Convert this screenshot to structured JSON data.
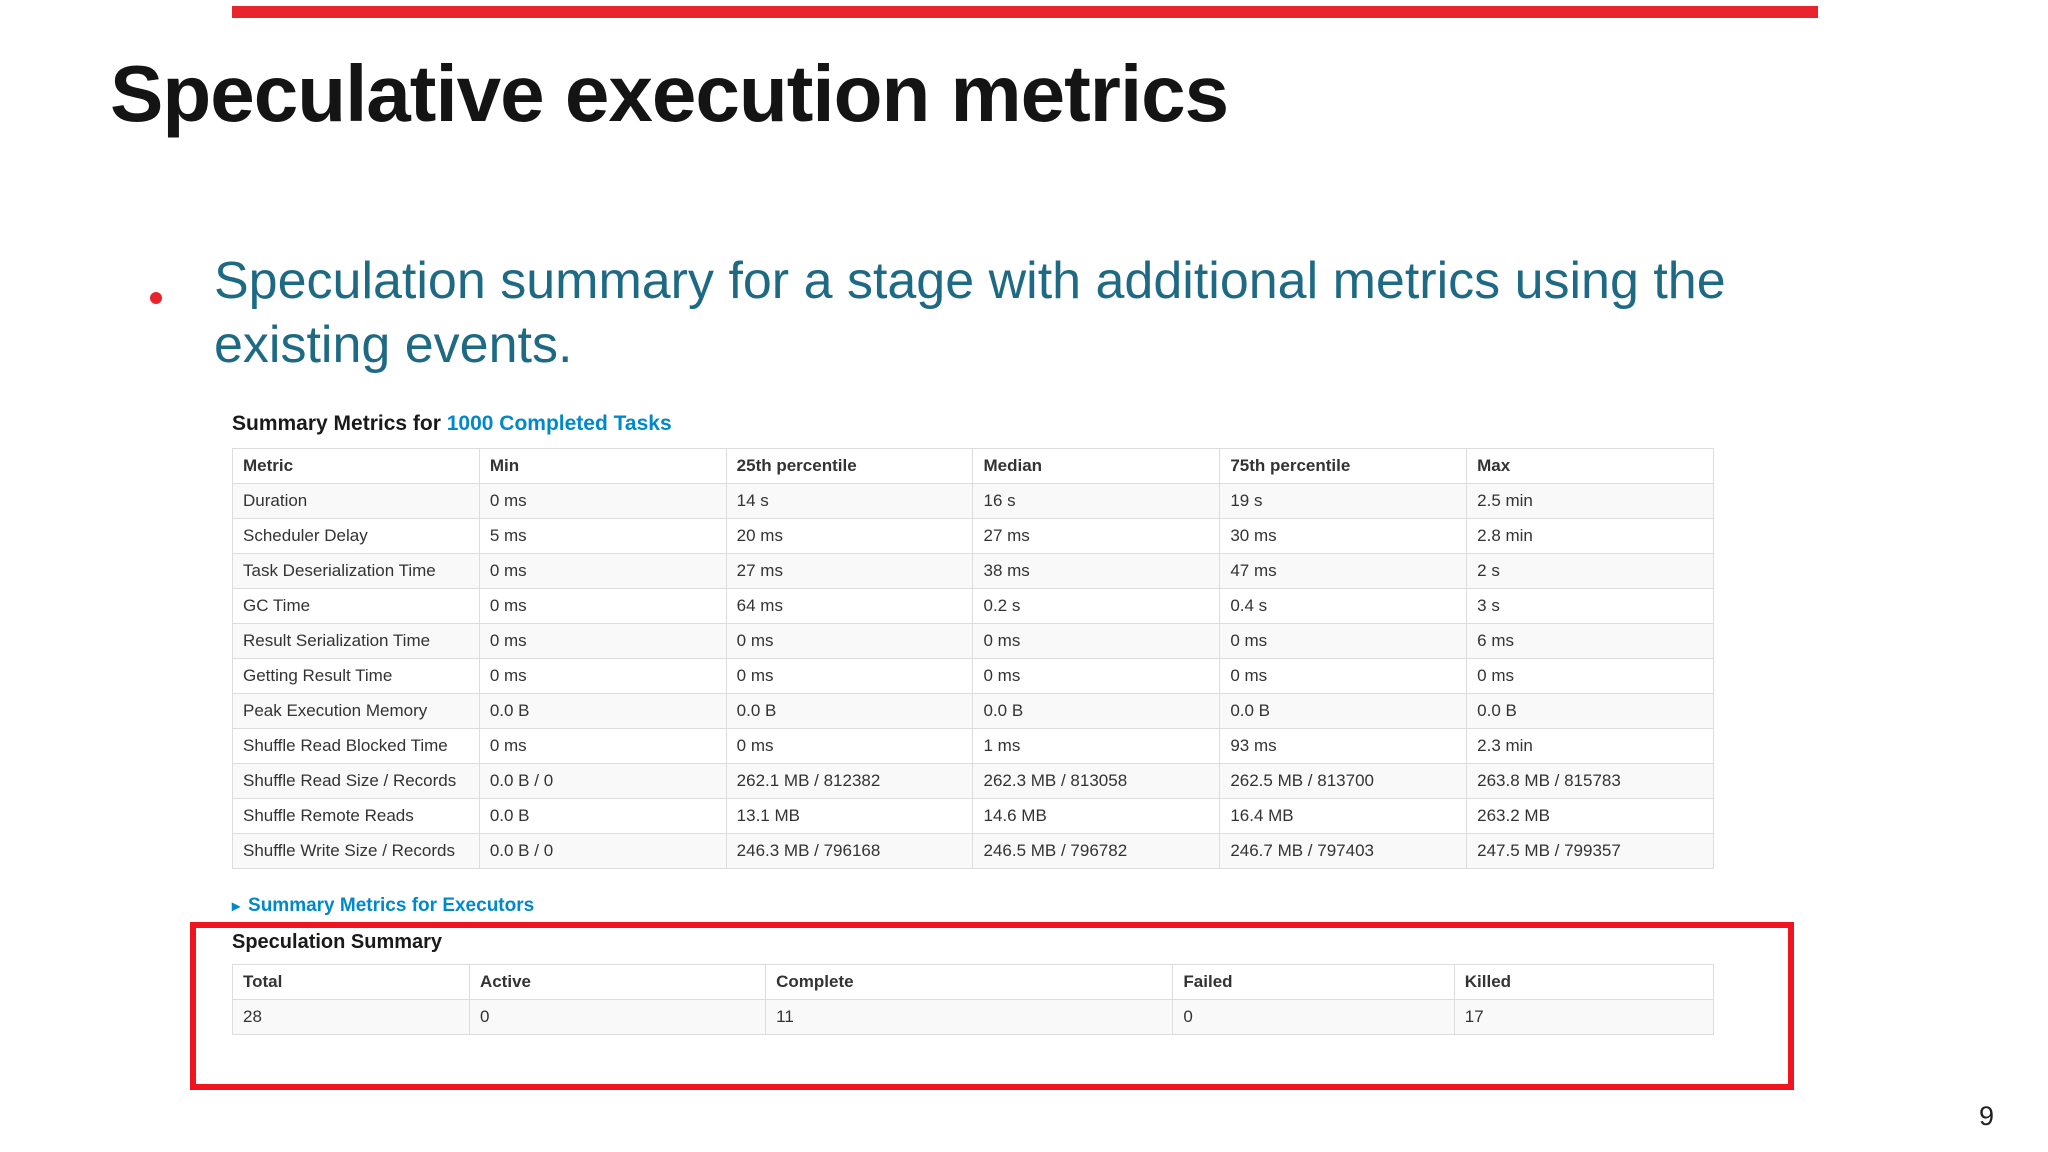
{
  "slide": {
    "title": "Speculative execution metrics",
    "bullet_text": "Speculation summary for a stage with additional metrics using the existing events.",
    "page_number": "9"
  },
  "spark_ui": {
    "summary_title_prefix": "Summary Metrics for ",
    "summary_title_link": "1000 Completed Tasks",
    "metrics_table": {
      "headers": [
        "Metric",
        "Min",
        "25th percentile",
        "Median",
        "75th percentile",
        "Max"
      ],
      "rows": [
        [
          "Duration",
          "0 ms",
          "14 s",
          "16 s",
          "19 s",
          "2.5 min"
        ],
        [
          "Scheduler Delay",
          "5 ms",
          "20 ms",
          "27 ms",
          "30 ms",
          "2.8 min"
        ],
        [
          "Task Deserialization Time",
          "0 ms",
          "27 ms",
          "38 ms",
          "47 ms",
          "2 s"
        ],
        [
          "GC Time",
          "0 ms",
          "64 ms",
          "0.2 s",
          "0.4 s",
          "3 s"
        ],
        [
          "Result Serialization Time",
          "0 ms",
          "0 ms",
          "0 ms",
          "0 ms",
          "6 ms"
        ],
        [
          "Getting Result Time",
          "0 ms",
          "0 ms",
          "0 ms",
          "0 ms",
          "0 ms"
        ],
        [
          "Peak Execution Memory",
          "0.0 B",
          "0.0 B",
          "0.0 B",
          "0.0 B",
          "0.0 B"
        ],
        [
          "Shuffle Read Blocked Time",
          "0 ms",
          "0 ms",
          "1 ms",
          "93 ms",
          "2.3 min"
        ],
        [
          "Shuffle Read Size / Records",
          "0.0 B / 0",
          "262.1 MB / 812382",
          "262.3 MB / 813058",
          "262.5 MB / 813700",
          "263.8 MB / 815783"
        ],
        [
          "Shuffle Remote Reads",
          "0.0 B",
          "13.1 MB",
          "14.6 MB",
          "16.4 MB",
          "263.2 MB"
        ],
        [
          "Shuffle Write Size / Records",
          "0.0 B / 0",
          "246.3 MB / 796168",
          "246.5 MB / 796782",
          "246.7 MB / 797403",
          "247.5 MB / 799357"
        ]
      ]
    },
    "executors_link_icon": "▸",
    "executors_link_label": "Summary Metrics for Executors",
    "speculation_title": "Speculation Summary",
    "speculation_table": {
      "headers": [
        "Total",
        "Active",
        "Complete",
        "Failed",
        "Killed"
      ],
      "rows": [
        [
          "28",
          "0",
          "11",
          "0",
          "17"
        ]
      ]
    }
  },
  "colors": {
    "accent_red": "#e8242c",
    "highlight_red": "#f0141e",
    "teal_text": "#1e6a85",
    "link_blue": "#0088cc"
  }
}
